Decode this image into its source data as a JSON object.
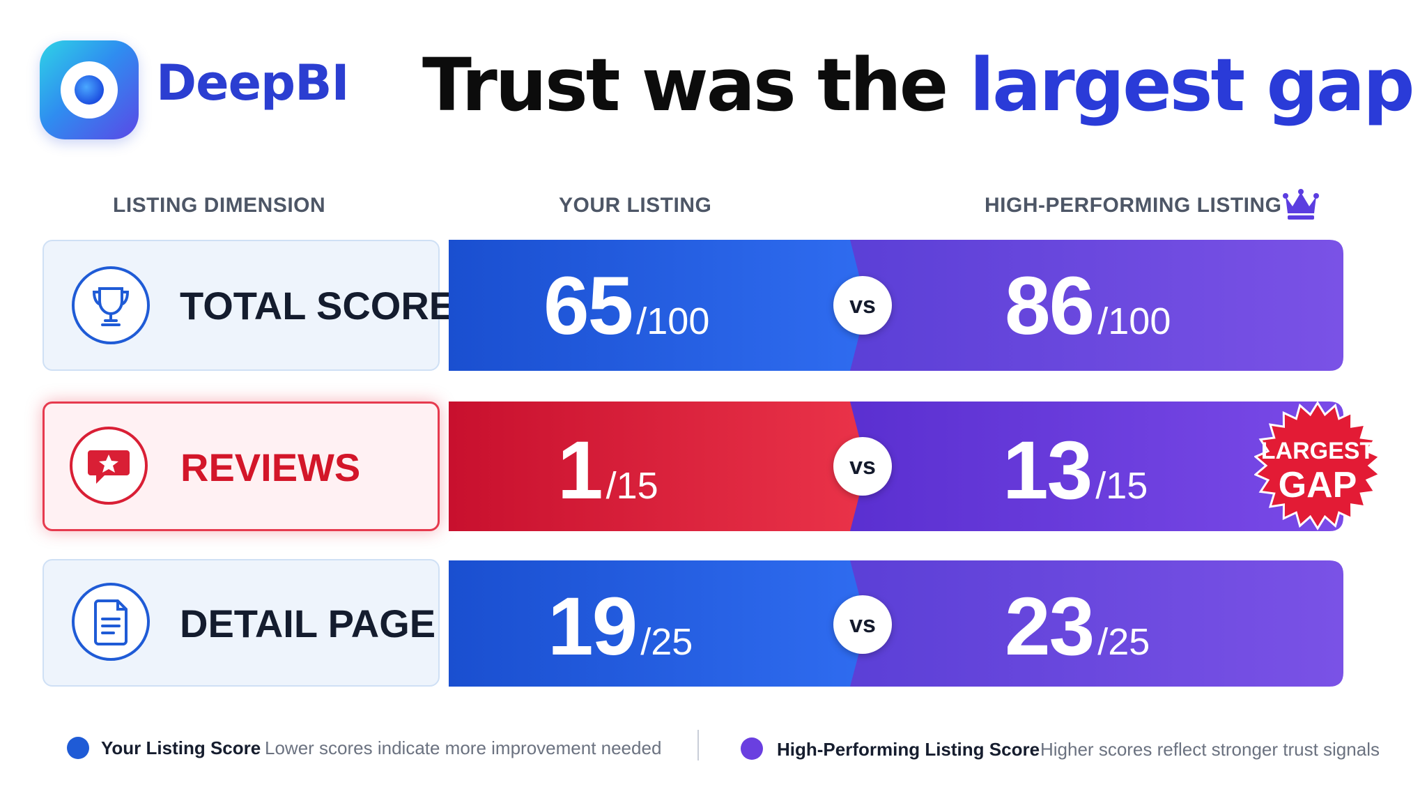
{
  "brand": {
    "name": "DeepBI"
  },
  "headline": {
    "lead": "Trust was the ",
    "accent": "largest gap"
  },
  "columns": {
    "dimension": "LISTING DIMENSION",
    "yours": "YOUR LISTING",
    "top": "HIGH-PERFORMING LISTING",
    "top_icon": "crown-icon"
  },
  "chart_data": {
    "type": "table",
    "categories": [
      "TOTAL SCORE",
      "REVIEWS",
      "DETAIL PAGE"
    ],
    "icons": [
      "trophy-icon",
      "review-star-icon",
      "document-icon"
    ],
    "series": [
      {
        "name": "Your Listing Score",
        "values": [
          65,
          1,
          19
        ]
      },
      {
        "name": "High-Performing Listing Score",
        "values": [
          86,
          13,
          23
        ]
      }
    ],
    "max": [
      100,
      15,
      25
    ],
    "max_labels": [
      "/100",
      "/15",
      "/25"
    ],
    "highlight_index": 1,
    "vs_label": "vs",
    "badge": {
      "line1": "LARGEST",
      "line2": "GAP"
    }
  },
  "legend": [
    {
      "label": "Your Listing Score",
      "note": "Lower scores indicate more improvement needed",
      "color": "#1f5bd6"
    },
    {
      "label": "High-Performing Listing Score",
      "note": "Higher scores reflect stronger trust signals",
      "color": "#6a3fe0"
    }
  ],
  "colors": {
    "your_blue": "#1f5bd6",
    "top_purple": "#6a3fe0",
    "highlight_red": "#d91f35",
    "accent": "#2a3bd8"
  }
}
